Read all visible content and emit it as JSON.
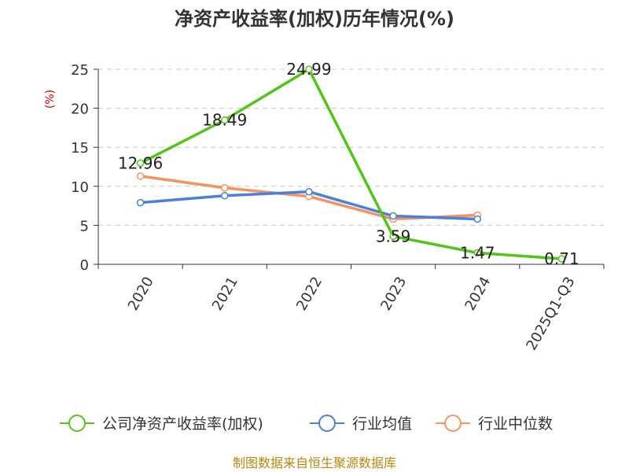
{
  "chart_data": {
    "type": "line",
    "title": "净资产收益率(加权)历年情况(%)",
    "ylabel": "(%)",
    "categories": [
      "2020",
      "2021",
      "2022",
      "2023",
      "2024",
      "2025Q1-Q3"
    ],
    "yticks": [
      0,
      5,
      10,
      15,
      20,
      25
    ],
    "ylim": [
      0,
      25
    ],
    "grid": true,
    "legend_position": "bottom",
    "series": [
      {
        "name": "公司净资产收益率(加权)",
        "color": "#52c41a",
        "values": [
          12.96,
          18.49,
          24.99,
          3.59,
          1.47,
          0.71
        ],
        "labels": [
          "12.96",
          "18.49",
          "24.99",
          "3.59",
          "1.47",
          "0.71"
        ]
      },
      {
        "name": "行业均值",
        "color": "#4a7fdb",
        "values": [
          7.9,
          8.8,
          9.3,
          6.2,
          5.8,
          null
        ]
      },
      {
        "name": "行业中位数",
        "color": "#f5925e",
        "values": [
          11.3,
          9.8,
          8.7,
          5.8,
          6.3,
          null
        ]
      }
    ]
  },
  "footer": {
    "source": "制图数据来自恒生聚源数据库"
  }
}
